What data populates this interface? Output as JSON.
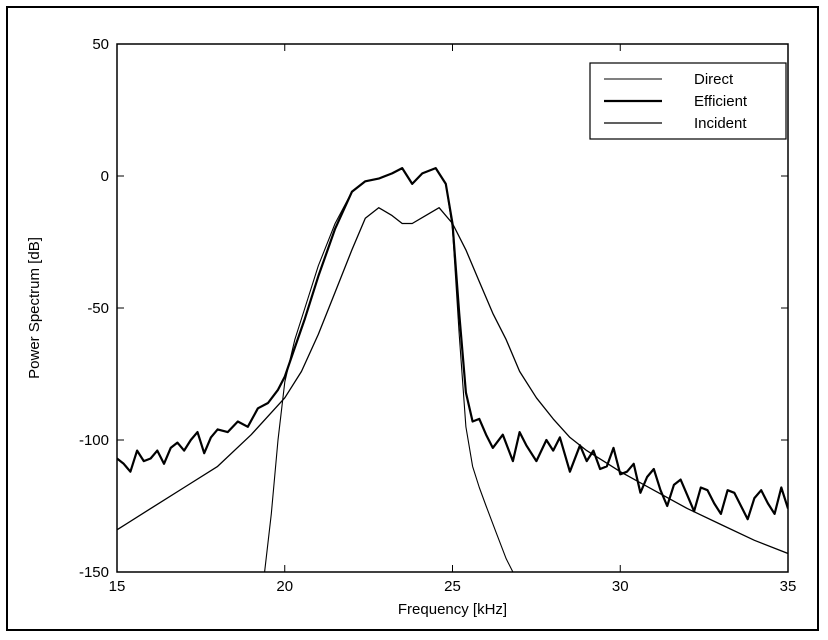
{
  "chart_data": {
    "type": "line",
    "title": "",
    "xlabel": "Frequency [kHz]",
    "ylabel": "Power Spectrum [dB]",
    "xlim": [
      15,
      35
    ],
    "ylim": [
      -150,
      50
    ],
    "xticks": [
      15,
      20,
      25,
      30,
      35
    ],
    "yticks": [
      50,
      0,
      -50,
      -100,
      -150
    ],
    "grid": false,
    "legend_position": "top-right",
    "series": [
      {
        "name": "Direct",
        "x": [
          19.4,
          19.6,
          19.8,
          20.0,
          20.3,
          20.6,
          21.0,
          21.5,
          22.0,
          22.4,
          22.8,
          23.2,
          23.5,
          23.8,
          24.1,
          24.5,
          24.8,
          25.0,
          25.2,
          25.4,
          25.6,
          25.8,
          26.0,
          26.3,
          26.6,
          26.8
        ],
        "y": [
          -150,
          -128,
          -100,
          -78,
          -62,
          -50,
          -34,
          -18,
          -6,
          -2,
          -1,
          1,
          3,
          -3,
          1,
          3,
          -3,
          -20,
          -60,
          -95,
          -110,
          -118,
          -125,
          -135,
          -145,
          -150
        ]
      },
      {
        "name": "Efficient",
        "x": [
          15.0,
          15.2,
          15.4,
          15.6,
          15.8,
          16.0,
          16.2,
          16.4,
          16.6,
          16.8,
          17.0,
          17.2,
          17.4,
          17.6,
          17.8,
          18.0,
          18.3,
          18.6,
          18.9,
          19.2,
          19.5,
          19.8,
          20.0,
          20.3,
          20.6,
          21.0,
          21.5,
          22.0,
          22.4,
          22.8,
          23.2,
          23.5,
          23.8,
          24.1,
          24.5,
          24.8,
          25.0,
          25.2,
          25.4,
          25.6,
          25.8,
          26.0,
          26.2,
          26.5,
          26.8,
          27.0,
          27.2,
          27.5,
          27.8,
          28.0,
          28.2,
          28.5,
          28.8,
          29.0,
          29.2,
          29.4,
          29.6,
          29.8,
          30.0,
          30.2,
          30.4,
          30.6,
          30.8,
          31.0,
          31.2,
          31.4,
          31.6,
          31.8,
          32.0,
          32.2,
          32.4,
          32.6,
          32.8,
          33.0,
          33.2,
          33.4,
          33.6,
          33.8,
          34.0,
          34.2,
          34.4,
          34.6,
          34.8,
          35.0
        ],
        "y": [
          -107,
          -109,
          -112,
          -104,
          -108,
          -107,
          -104,
          -109,
          -103,
          -101,
          -104,
          -100,
          -97,
          -105,
          -99,
          -96,
          -97,
          -93,
          -95,
          -88,
          -86,
          -81,
          -76,
          -65,
          -54,
          -38,
          -20,
          -6,
          -2,
          -1,
          1,
          3,
          -3,
          1,
          3,
          -3,
          -18,
          -52,
          -82,
          -93,
          -92,
          -98,
          -103,
          -98,
          -108,
          -97,
          -102,
          -108,
          -100,
          -104,
          -99,
          -112,
          -102,
          -108,
          -104,
          -111,
          -110,
          -103,
          -113,
          -112,
          -109,
          -120,
          -114,
          -111,
          -119,
          -125,
          -117,
          -115,
          -121,
          -127,
          -118,
          -119,
          -124,
          -128,
          -119,
          -120,
          -125,
          -130,
          -122,
          -119,
          -124,
          -128,
          -118,
          -126
        ]
      },
      {
        "name": "Incident",
        "x": [
          15.0,
          16.0,
          17.0,
          18.0,
          19.0,
          20.0,
          20.5,
          21.0,
          21.5,
          22.0,
          22.4,
          22.8,
          23.2,
          23.5,
          23.8,
          24.2,
          24.6,
          25.0,
          25.4,
          25.8,
          26.2,
          26.6,
          27.0,
          27.5,
          28.0,
          28.5,
          29.0,
          29.5,
          30.0,
          31.0,
          32.0,
          33.0,
          34.0,
          35.0
        ],
        "y": [
          -134,
          -126,
          -118,
          -110,
          -98,
          -84,
          -74,
          -60,
          -44,
          -28,
          -16,
          -12,
          -15,
          -18,
          -18,
          -15,
          -12,
          -18,
          -28,
          -40,
          -52,
          -62,
          -74,
          -84,
          -92,
          -99,
          -104,
          -108,
          -112,
          -119,
          -126,
          -132,
          -138,
          -143
        ]
      }
    ]
  }
}
